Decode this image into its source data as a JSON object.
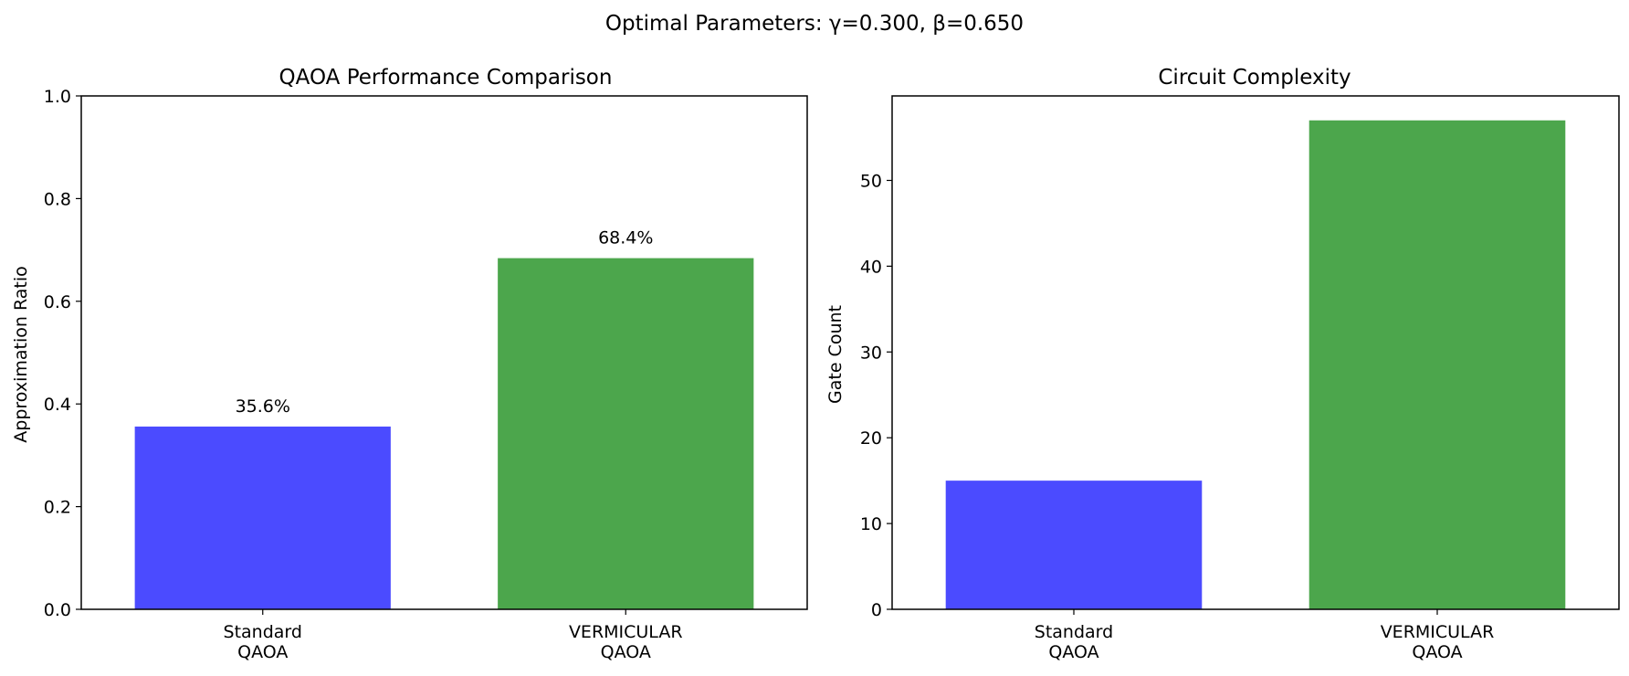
{
  "suptitle": "Optimal Parameters: γ=0.300, β=0.650",
  "chart_data": [
    {
      "type": "bar",
      "title": "QAOA Performance Comparison",
      "xlabel": "",
      "ylabel": "Approximation Ratio",
      "categories": [
        "Standard\nQAOA",
        "VERMICULAR\nQAOA"
      ],
      "values": [
        0.356,
        0.684
      ],
      "bar_labels": [
        "35.6%",
        "68.4%"
      ],
      "colors": [
        "#4B4BFF",
        "#4CA64C"
      ],
      "ylim": [
        0,
        1.0
      ],
      "yticks": [
        0.0,
        0.2,
        0.4,
        0.6,
        0.8,
        1.0
      ],
      "ytick_labels": [
        "0.0",
        "0.2",
        "0.4",
        "0.6",
        "0.8",
        "1.0"
      ],
      "grid": false
    },
    {
      "type": "bar",
      "title": "Circuit Complexity",
      "xlabel": "",
      "ylabel": "Gate Count",
      "categories": [
        "Standard\nQAOA",
        "VERMICULAR\nQAOA"
      ],
      "values": [
        15,
        57
      ],
      "colors": [
        "#4B4BFF",
        "#4CA64C"
      ],
      "ylim": [
        0,
        59.85
      ],
      "yticks": [
        0,
        10,
        20,
        30,
        40,
        50
      ],
      "ytick_labels": [
        "0",
        "10",
        "20",
        "30",
        "40",
        "50"
      ],
      "grid": false
    }
  ]
}
